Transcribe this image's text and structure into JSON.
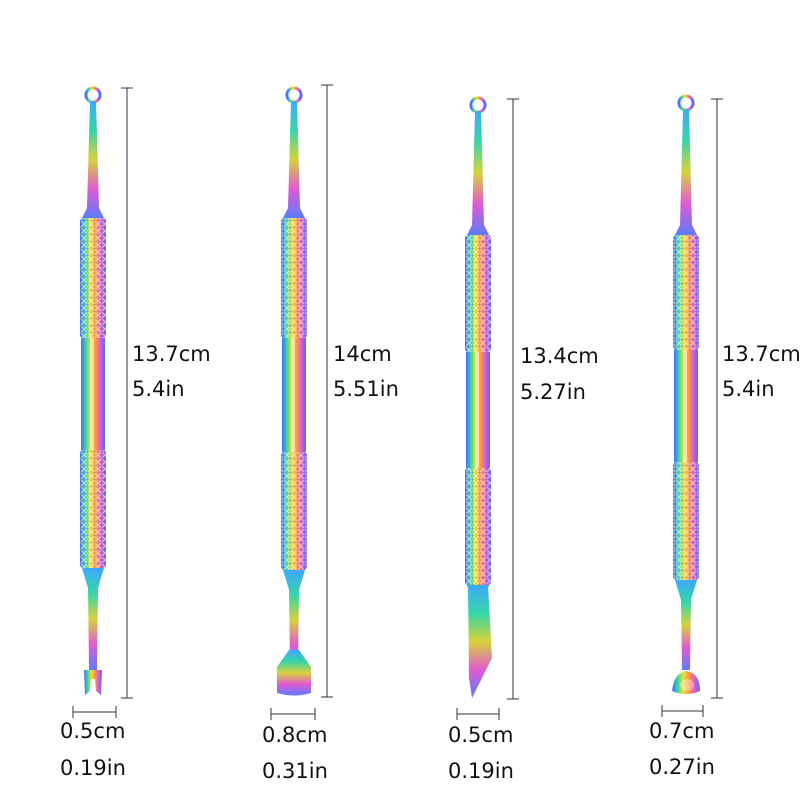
{
  "tools": [
    {
      "length_cm": "13.7cm",
      "length_in": "5.4in",
      "width_cm": "0.5cm",
      "width_in": "0.19in",
      "tip_top": "ring-loop",
      "tip_bottom": "forked-pusher-tip"
    },
    {
      "length_cm": "14cm",
      "length_in": "5.51in",
      "width_cm": "0.8cm",
      "width_in": "0.31in",
      "tip_top": "ring-loop",
      "tip_bottom": "flat-spatula-tip"
    },
    {
      "length_cm": "13.4cm",
      "length_in": "5.27in",
      "width_cm": "0.5cm",
      "width_in": "0.19in",
      "tip_top": "ring-loop",
      "tip_bottom": "angled-blade-tip"
    },
    {
      "length_cm": "13.7cm",
      "length_in": "5.4in",
      "width_cm": "0.7cm",
      "width_in": "0.27in",
      "tip_top": "ring-loop",
      "tip_bottom": "scoop-spoon-tip"
    }
  ],
  "colors": {
    "background": "#ffffff",
    "text": "#111111",
    "dimension_line": "#333333",
    "iridescent": [
      "#3fa8ff",
      "#35d6a6",
      "#d8d23a",
      "#ff9a3c",
      "#e25ad0",
      "#7a5cff"
    ]
  }
}
